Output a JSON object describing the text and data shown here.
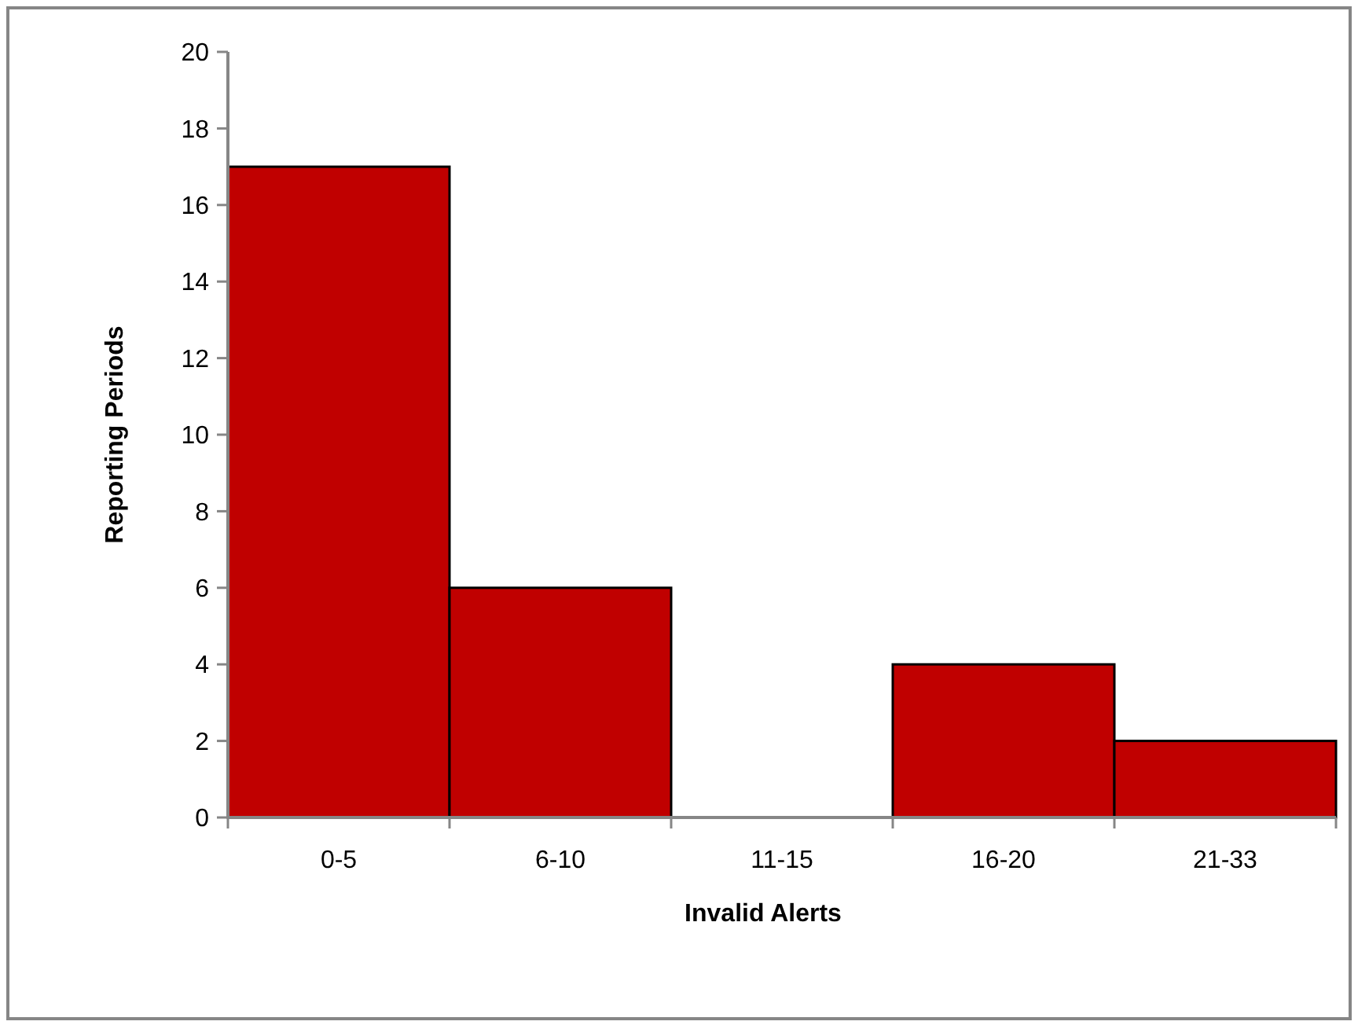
{
  "chart_data": {
    "type": "bar",
    "xlabel": "Invalid Alerts",
    "ylabel": "Reporting Periods",
    "categories": [
      "0-5",
      "6-10",
      "11-15",
      "16-20",
      "21-33"
    ],
    "series": [
      {
        "color": "#c00000",
        "values": [
          17,
          6,
          0,
          4,
          2
        ]
      }
    ],
    "ylim": [
      0,
      20
    ],
    "yticks": [
      0,
      2,
      4,
      6,
      8,
      10,
      12,
      14,
      16,
      18,
      20
    ],
    "grid": false
  }
}
